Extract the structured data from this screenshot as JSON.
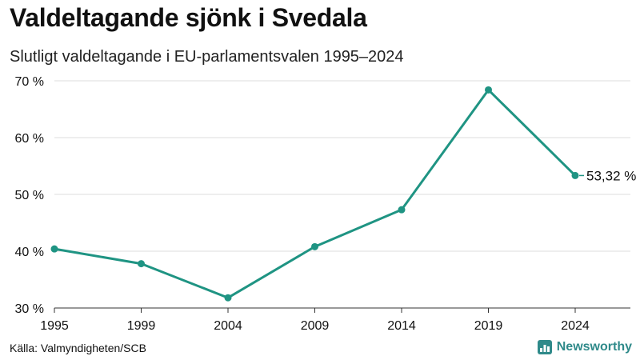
{
  "title": "Valdeltagande sjönk i Svedala",
  "subtitle": "Slutligt valdeltagande i EU-parlamentsvalen 1995–2024",
  "source": "Källa: Valmyndigheten/SCB",
  "brand": {
    "name": "Newsworthy",
    "icon": "bar-chart-icon"
  },
  "colors": {
    "line": "#1f9483",
    "grid": "#dddddd",
    "brand": "#2f8a8a"
  },
  "chart_data": {
    "type": "line",
    "x": [
      1995,
      1999,
      2004,
      2009,
      2014,
      2019,
      2024
    ],
    "x_tick_labels": [
      "1995",
      "1999",
      "2004",
      "2009",
      "2014",
      "2019",
      "2024"
    ],
    "series": [
      {
        "values": [
          40.4,
          37.8,
          31.8,
          40.8,
          47.3,
          68.4,
          53.32
        ]
      }
    ],
    "ylim": [
      30,
      70
    ],
    "y_ticks": [
      30,
      40,
      50,
      60,
      70
    ],
    "y_tick_labels": [
      "30 %",
      "40 %",
      "50 %",
      "60 %",
      "70 %"
    ],
    "annotation": {
      "index": 6,
      "text": "53,32 %"
    },
    "grid": true
  }
}
